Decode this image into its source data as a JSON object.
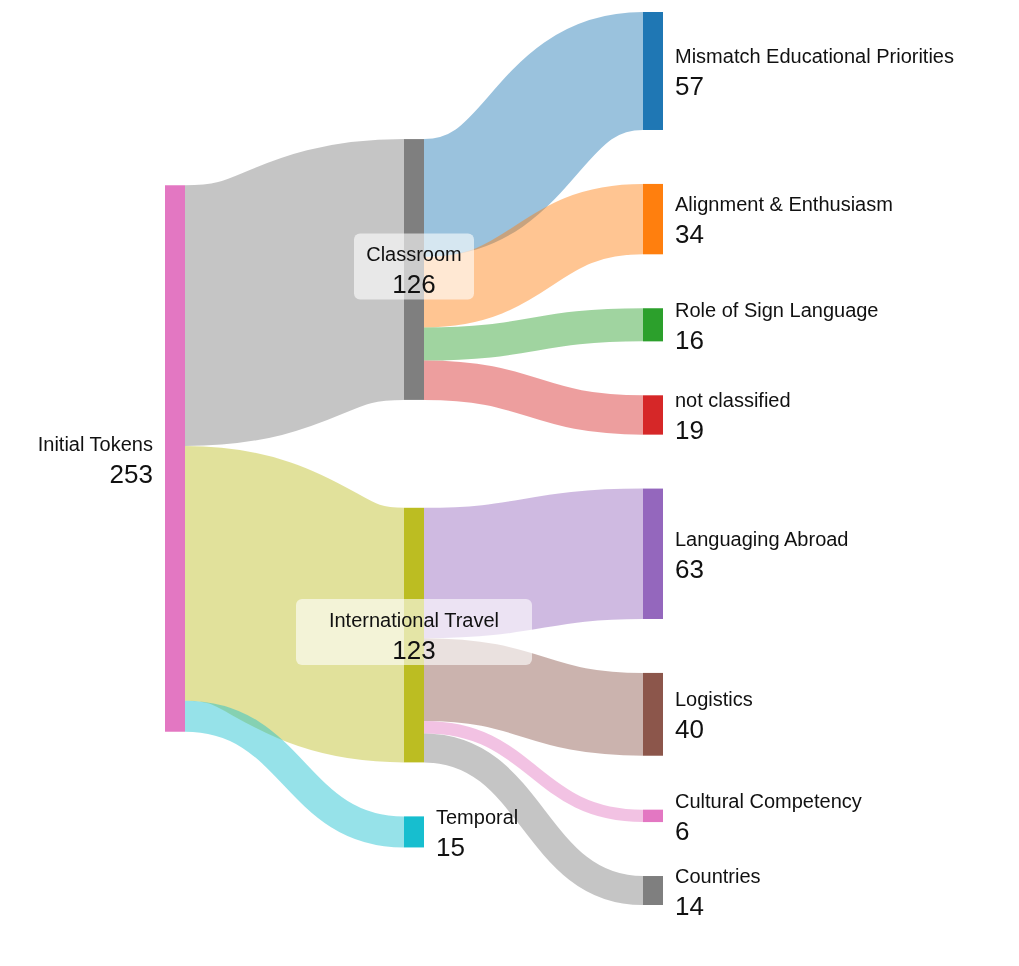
{
  "chart_data": {
    "type": "other",
    "categories": [
      "Initial Tokens",
      "Classroom",
      "International Travel",
      "Temporal",
      "Mismatch Educational Priorities",
      "Alignment & Enthusiasm",
      "Role of Sign Language",
      "not classified",
      "Languaging Abroad",
      "Logistics",
      "Cultural Competency",
      "Countries"
    ],
    "data_labels": true,
    "series": [
      {
        "values": [
          253,
          null,
          null,
          null,
          null,
          null,
          null,
          null,
          null,
          null,
          null,
          null
        ],
        "colors": [
          "#e377c2",
          null,
          null,
          null,
          null,
          null,
          null,
          null,
          null,
          null,
          null,
          null
        ]
      },
      {
        "values": [
          null,
          126,
          123,
          15,
          null,
          null,
          null,
          null,
          null,
          null,
          null,
          null
        ],
        "colors": [
          null,
          "#7f7f7f",
          "#bcbd22",
          "#17becf",
          null,
          null,
          null,
          null,
          null,
          null,
          null,
          null
        ]
      },
      {
        "values": [
          null,
          null,
          null,
          null,
          57,
          34,
          16,
          19,
          63,
          40,
          6,
          14
        ],
        "colors": [
          null,
          null,
          null,
          null,
          "#1f77b4",
          "#ff7f0e",
          "#2ca02c",
          "#d62728",
          "#9467bd",
          "#8c564b",
          "#e377c2",
          "#7f7f7f"
        ]
      }
    ]
  }
}
